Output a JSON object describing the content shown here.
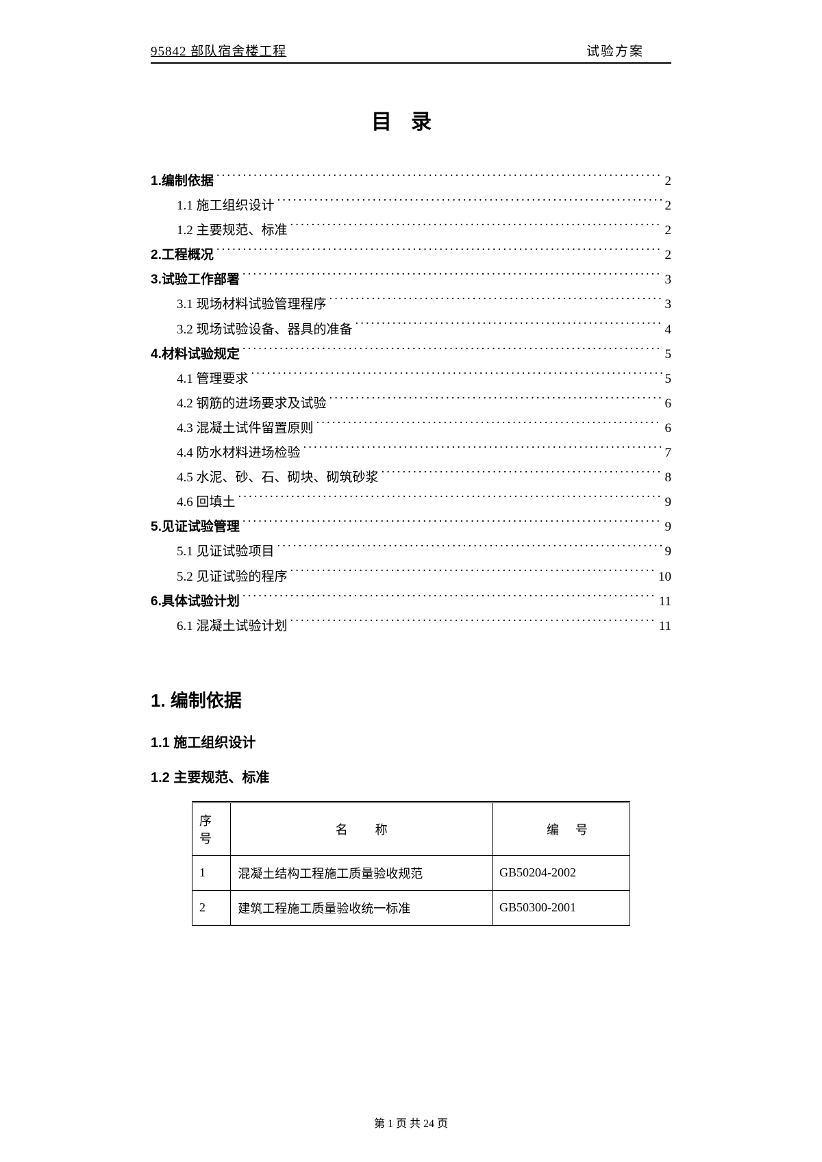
{
  "header": {
    "left": "95842 部队宿舍楼工程",
    "right": "试验方案"
  },
  "title": "目录",
  "toc": [
    {
      "level": 1,
      "label": "1.编制依据",
      "page": "2"
    },
    {
      "level": 2,
      "label": "1.1 施工组织设计",
      "page": "2"
    },
    {
      "level": 2,
      "label": "1.2 主要规范、标准",
      "page": "2"
    },
    {
      "level": 1,
      "label": "2.工程概况",
      "page": "2"
    },
    {
      "level": 1,
      "label": "3.试验工作部署",
      "page": "3"
    },
    {
      "level": 2,
      "label": "3.1 现场材料试验管理程序",
      "page": "3"
    },
    {
      "level": 2,
      "label": "3.2 现场试验设备、器具的准备",
      "page": "4"
    },
    {
      "level": 1,
      "label": "4.材料试验规定",
      "page": "5"
    },
    {
      "level": 2,
      "label": "4.1 管理要求",
      "page": "5"
    },
    {
      "level": 2,
      "label": "4.2 钢筋的进场要求及试验",
      "page": "6"
    },
    {
      "level": 2,
      "label": "4.3 混凝土试件留置原则",
      "page": "6"
    },
    {
      "level": 2,
      "label": "4.4 防水材料进场检验",
      "page": "7"
    },
    {
      "level": 2,
      "label": "4.5 水泥、砂、石、砌块、砌筑砂浆",
      "page": "8"
    },
    {
      "level": 2,
      "label": "4.6 回填土",
      "page": "9"
    },
    {
      "level": 1,
      "label": "5.见证试验管理",
      "page": "9"
    },
    {
      "level": 2,
      "label": "5.1 见证试验项目",
      "page": "9"
    },
    {
      "level": 2,
      "label": "5.2 见证试验的程序",
      "page": "10"
    },
    {
      "level": 1,
      "label": "6.具体试验计划",
      "page": "11"
    },
    {
      "level": 2,
      "label": "6.1 混凝土试验计划",
      "page": "11"
    }
  ],
  "sections": {
    "s1": "1. 编制依据",
    "s1_1": "1.1 施工组织设计",
    "s1_2": "1.2 主要规范、标准"
  },
  "table": {
    "headers": {
      "seq": "序号",
      "name": "名称",
      "code": "编号"
    },
    "rows": [
      {
        "seq": "1",
        "name": "混凝土结构工程施工质量验收规范",
        "code": "GB50204-2002"
      },
      {
        "seq": "2",
        "name": "建筑工程施工质量验收统一标准",
        "code": "GB50300-2001"
      }
    ]
  },
  "footer": "第 1 页  共 24 页"
}
